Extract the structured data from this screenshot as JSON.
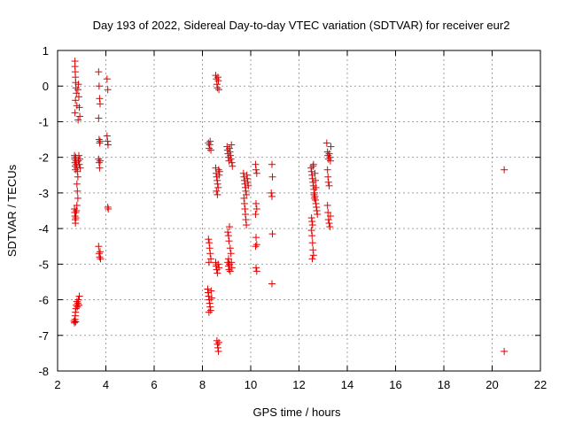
{
  "chart_data": {
    "type": "scatter",
    "title": "Day 193 of 2022, Sidereal Day-to-day VTEC variation (SDTVAR) for receiver eur2",
    "xlabel": "GPS time / hours",
    "ylabel": "SDTVAR / TECUs",
    "xlim": [
      2,
      22
    ],
    "ylim": [
      -8,
      1
    ],
    "x_ticks": [
      "2",
      "4",
      "6",
      "8",
      "10",
      "12",
      "14",
      "16",
      "18",
      "20",
      "22"
    ],
    "y_ticks": [
      "1",
      "0",
      "-1",
      "-2",
      "-3",
      "-4",
      "-5",
      "-6",
      "-7",
      "-8"
    ],
    "grid": true,
    "marker": "plus",
    "color": "#e00000",
    "series": [
      {
        "name": "eur2",
        "points": [
          [
            2.72,
            0.7
          ],
          [
            2.72,
            0.55
          ],
          [
            2.73,
            0.4
          ],
          [
            2.74,
            0.25
          ],
          [
            2.75,
            0.1
          ],
          [
            2.76,
            -0.05
          ],
          [
            2.78,
            -0.2
          ],
          [
            2.74,
            -0.4
          ],
          [
            2.8,
            -0.55
          ],
          [
            2.72,
            -0.75
          ],
          [
            2.84,
            -0.1
          ],
          [
            2.86,
            0.05
          ],
          [
            2.88,
            -0.3
          ],
          [
            2.9,
            -0.6
          ],
          [
            2.92,
            -0.85
          ],
          [
            2.85,
            -0.95
          ],
          [
            2.7,
            -1.95
          ],
          [
            2.71,
            -2.05
          ],
          [
            2.72,
            -2.15
          ],
          [
            2.73,
            -2.25
          ],
          [
            2.74,
            -2.35
          ],
          [
            2.75,
            -2.0
          ],
          [
            2.76,
            -2.1
          ],
          [
            2.78,
            -2.2
          ],
          [
            2.8,
            -2.3
          ],
          [
            2.82,
            -2.4
          ],
          [
            2.84,
            -2.55
          ],
          [
            2.86,
            -2.1
          ],
          [
            2.88,
            -1.95
          ],
          [
            2.9,
            -2.2
          ],
          [
            2.92,
            -2.05
          ],
          [
            2.94,
            -2.3
          ],
          [
            2.8,
            -2.75
          ],
          [
            2.82,
            -2.95
          ],
          [
            2.84,
            -3.15
          ],
          [
            2.8,
            -3.35
          ],
          [
            2.7,
            -3.45
          ],
          [
            2.71,
            -3.55
          ],
          [
            2.72,
            -3.65
          ],
          [
            2.73,
            -3.75
          ],
          [
            2.74,
            -3.85
          ],
          [
            2.75,
            -3.55
          ],
          [
            2.76,
            -3.7
          ],
          [
            2.78,
            -3.5
          ],
          [
            2.68,
            -6.6
          ],
          [
            2.7,
            -6.65
          ],
          [
            2.72,
            -6.55
          ],
          [
            2.73,
            -6.45
          ],
          [
            2.74,
            -6.35
          ],
          [
            2.76,
            -6.25
          ],
          [
            2.78,
            -6.15
          ],
          [
            2.8,
            -6.05
          ],
          [
            2.82,
            -6.2
          ],
          [
            2.84,
            -6.1
          ],
          [
            2.86,
            -6.0
          ],
          [
            2.88,
            -6.15
          ],
          [
            2.9,
            -5.9
          ],
          [
            2.75,
            -6.62
          ],
          [
            3.7,
            0.4
          ],
          [
            3.72,
            0.0
          ],
          [
            3.74,
            -0.35
          ],
          [
            3.76,
            -0.5
          ],
          [
            3.7,
            -0.9
          ],
          [
            4.05,
            0.2
          ],
          [
            4.08,
            -0.1
          ],
          [
            3.72,
            -1.5
          ],
          [
            3.74,
            -1.6
          ],
          [
            3.76,
            -1.55
          ],
          [
            4.05,
            -1.4
          ],
          [
            4.07,
            -1.55
          ],
          [
            4.09,
            -1.65
          ],
          [
            3.7,
            -2.05
          ],
          [
            3.72,
            -2.15
          ],
          [
            3.74,
            -2.3
          ],
          [
            3.76,
            -2.1
          ],
          [
            4.08,
            -3.4
          ],
          [
            4.1,
            -3.45
          ],
          [
            3.7,
            -4.5
          ],
          [
            3.72,
            -4.7
          ],
          [
            3.74,
            -4.8
          ],
          [
            3.76,
            -4.65
          ],
          [
            3.78,
            -4.85
          ],
          [
            8.25,
            -1.6
          ],
          [
            8.28,
            -1.75
          ],
          [
            8.3,
            -1.65
          ],
          [
            8.32,
            -1.55
          ],
          [
            8.35,
            -1.8
          ],
          [
            8.55,
            0.3
          ],
          [
            8.58,
            0.2
          ],
          [
            8.6,
            0.05
          ],
          [
            8.62,
            -0.05
          ],
          [
            8.64,
            0.25
          ],
          [
            8.66,
            0.15
          ],
          [
            8.68,
            -0.1
          ],
          [
            8.55,
            -2.3
          ],
          [
            8.57,
            -2.45
          ],
          [
            8.59,
            -2.55
          ],
          [
            8.61,
            -2.65
          ],
          [
            8.63,
            -2.75
          ],
          [
            8.65,
            -2.85
          ],
          [
            8.67,
            -2.35
          ],
          [
            8.69,
            -2.5
          ],
          [
            8.71,
            -2.4
          ],
          [
            8.58,
            -2.95
          ],
          [
            8.62,
            -3.05
          ],
          [
            8.25,
            -4.3
          ],
          [
            8.28,
            -4.4
          ],
          [
            8.3,
            -4.55
          ],
          [
            8.32,
            -4.7
          ],
          [
            8.35,
            -4.85
          ],
          [
            8.27,
            -4.95
          ],
          [
            8.55,
            -4.95
          ],
          [
            8.57,
            -5.05
          ],
          [
            8.59,
            -5.15
          ],
          [
            8.62,
            -5.25
          ],
          [
            8.65,
            -5.0
          ],
          [
            8.68,
            -5.1
          ],
          [
            8.22,
            -5.7
          ],
          [
            8.24,
            -5.8
          ],
          [
            8.26,
            -5.9
          ],
          [
            8.28,
            -6.0
          ],
          [
            8.3,
            -6.1
          ],
          [
            8.32,
            -6.2
          ],
          [
            8.34,
            -6.3
          ],
          [
            8.36,
            -5.75
          ],
          [
            8.38,
            -5.95
          ],
          [
            8.27,
            -6.35
          ],
          [
            8.6,
            -7.15
          ],
          [
            8.62,
            -7.25
          ],
          [
            8.64,
            -7.35
          ],
          [
            8.66,
            -7.45
          ],
          [
            8.68,
            -7.2
          ],
          [
            9.02,
            -1.7
          ],
          [
            9.04,
            -1.8
          ],
          [
            9.06,
            -1.9
          ],
          [
            9.08,
            -2.0
          ],
          [
            9.1,
            -2.1
          ],
          [
            9.12,
            -1.75
          ],
          [
            9.14,
            -1.85
          ],
          [
            9.16,
            -1.95
          ],
          [
            9.18,
            -2.05
          ],
          [
            9.2,
            -1.65
          ],
          [
            9.22,
            -2.15
          ],
          [
            9.24,
            -2.25
          ],
          [
            9.05,
            -4.1
          ],
          [
            9.08,
            -4.2
          ],
          [
            9.1,
            -4.35
          ],
          [
            9.12,
            -3.95
          ],
          [
            9.15,
            -4.55
          ],
          [
            9.18,
            -4.7
          ],
          [
            9.08,
            -4.85
          ],
          [
            9.05,
            -4.95
          ],
          [
            9.08,
            -5.05
          ],
          [
            9.1,
            -5.15
          ],
          [
            9.12,
            -5.0
          ],
          [
            9.15,
            -5.2
          ],
          [
            9.2,
            -4.95
          ],
          [
            9.22,
            -5.1
          ],
          [
            9.7,
            -2.45
          ],
          [
            9.72,
            -2.55
          ],
          [
            9.74,
            -2.65
          ],
          [
            9.76,
            -2.75
          ],
          [
            9.78,
            -2.85
          ],
          [
            9.8,
            -2.95
          ],
          [
            9.82,
            -3.05
          ],
          [
            9.84,
            -2.5
          ],
          [
            9.86,
            -2.6
          ],
          [
            9.88,
            -2.7
          ],
          [
            9.9,
            -2.8
          ],
          [
            9.72,
            -3.15
          ],
          [
            9.74,
            -3.3
          ],
          [
            9.76,
            -3.45
          ],
          [
            9.78,
            -3.6
          ],
          [
            9.8,
            -3.75
          ],
          [
            9.82,
            -3.9
          ],
          [
            10.2,
            -2.2
          ],
          [
            10.22,
            -2.35
          ],
          [
            10.25,
            -2.45
          ],
          [
            10.22,
            -3.3
          ],
          [
            10.25,
            -3.45
          ],
          [
            10.2,
            -3.6
          ],
          [
            10.22,
            -4.25
          ],
          [
            10.25,
            -4.45
          ],
          [
            10.2,
            -4.5
          ],
          [
            10.22,
            -5.1
          ],
          [
            10.25,
            -5.2
          ],
          [
            10.88,
            -2.2
          ],
          [
            10.9,
            -2.55
          ],
          [
            10.85,
            -3.0
          ],
          [
            10.88,
            -3.1
          ],
          [
            10.9,
            -4.15
          ],
          [
            10.88,
            -5.55
          ],
          [
            12.5,
            -2.3
          ],
          [
            12.52,
            -2.4
          ],
          [
            12.54,
            -2.5
          ],
          [
            12.56,
            -2.6
          ],
          [
            12.58,
            -2.7
          ],
          [
            12.6,
            -2.8
          ],
          [
            12.62,
            -2.9
          ],
          [
            12.64,
            -3.0
          ],
          [
            12.66,
            -3.1
          ],
          [
            12.68,
            -3.2
          ],
          [
            12.7,
            -3.3
          ],
          [
            12.72,
            -3.4
          ],
          [
            12.74,
            -3.5
          ],
          [
            12.76,
            -3.6
          ],
          [
            12.52,
            -3.7
          ],
          [
            12.54,
            -3.8
          ],
          [
            12.56,
            -3.9
          ],
          [
            12.58,
            -2.25
          ],
          [
            12.6,
            -2.2
          ],
          [
            12.62,
            -3.05
          ],
          [
            12.64,
            -3.15
          ],
          [
            12.66,
            -2.45
          ],
          [
            12.68,
            -2.65
          ],
          [
            12.7,
            -2.85
          ],
          [
            12.52,
            -4.05
          ],
          [
            12.54,
            -4.2
          ],
          [
            12.56,
            -4.4
          ],
          [
            12.58,
            -4.6
          ],
          [
            12.6,
            -4.75
          ],
          [
            12.55,
            -4.85
          ],
          [
            13.15,
            -1.6
          ],
          [
            13.18,
            -1.85
          ],
          [
            13.2,
            -1.95
          ],
          [
            13.22,
            -2.05
          ],
          [
            13.25,
            -1.9
          ],
          [
            13.28,
            -2.0
          ],
          [
            13.3,
            -2.1
          ],
          [
            13.32,
            -1.7
          ],
          [
            13.18,
            -2.35
          ],
          [
            13.2,
            -2.55
          ],
          [
            13.22,
            -2.7
          ],
          [
            13.25,
            -2.8
          ],
          [
            13.18,
            -3.35
          ],
          [
            13.2,
            -3.55
          ],
          [
            13.22,
            -3.75
          ],
          [
            13.25,
            -3.85
          ],
          [
            13.28,
            -3.95
          ],
          [
            13.3,
            -3.65
          ],
          [
            20.5,
            -2.35
          ],
          [
            20.5,
            -7.45
          ]
        ]
      }
    ]
  }
}
